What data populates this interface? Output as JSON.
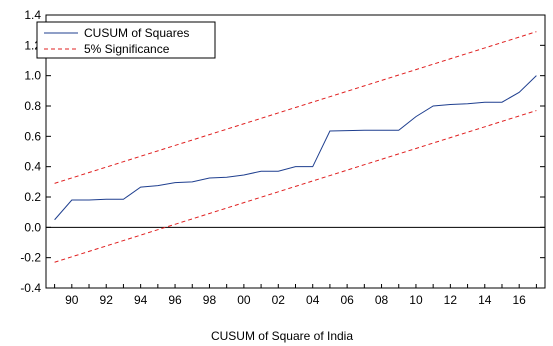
{
  "chart_data": {
    "type": "line",
    "title": "",
    "xlabel": "CUSUM of Square of India",
    "ylabel": "",
    "x": [
      1989,
      1990,
      1991,
      1992,
      1993,
      1994,
      1995,
      1996,
      1997,
      1998,
      1999,
      2000,
      2001,
      2002,
      2003,
      2004,
      2005,
      2006,
      2007,
      2008,
      2009,
      2010,
      2011,
      2012,
      2013,
      2014,
      2015,
      2016,
      2017
    ],
    "xticks": [
      "90",
      "92",
      "94",
      "96",
      "98",
      "00",
      "02",
      "04",
      "06",
      "08",
      "10",
      "12",
      "14",
      "16"
    ],
    "xtick_values": [
      1990,
      1992,
      1994,
      1996,
      1998,
      2000,
      2002,
      2004,
      2006,
      2008,
      2010,
      2012,
      2014,
      2016
    ],
    "xlim": [
      1988.5,
      2017.5
    ],
    "ylim": [
      -0.4,
      1.4
    ],
    "yticks": [
      "-0.4",
      "-0.2",
      "0.0",
      "0.2",
      "0.4",
      "0.6",
      "0.8",
      "1.0",
      "1.2",
      "1.4"
    ],
    "ytick_values": [
      -0.4,
      -0.2,
      0.0,
      0.2,
      0.4,
      0.6,
      0.8,
      1.0,
      1.2,
      1.4
    ],
    "zero_line": true,
    "grid": false,
    "legend_position": "top-left",
    "series": [
      {
        "name": "CUSUM of Squares",
        "color": "#1f3f8f",
        "style": "solid",
        "values": [
          0.05,
          0.18,
          0.18,
          0.185,
          0.185,
          0.265,
          0.275,
          0.295,
          0.3,
          0.325,
          0.33,
          0.345,
          0.37,
          0.37,
          0.4,
          0.4,
          0.635,
          0.638,
          0.64,
          0.64,
          0.64,
          0.73,
          0.8,
          0.81,
          0.815,
          0.825,
          0.825,
          0.89,
          1.0
        ]
      },
      {
        "name": "5% Significance",
        "color": "#e02020",
        "style": "dashed",
        "values": [
          0.29,
          0.3257,
          0.3614,
          0.3971,
          0.4329,
          0.4686,
          0.5043,
          0.54,
          0.5757,
          0.6114,
          0.6471,
          0.6829,
          0.7186,
          0.7543,
          0.79,
          0.8257,
          0.8614,
          0.8971,
          0.9329,
          0.9686,
          1.0043,
          1.04,
          1.0757,
          1.1114,
          1.1471,
          1.1829,
          1.2186,
          1.2543,
          1.29
        ]
      },
      {
        "name": "",
        "color": "#e02020",
        "style": "dashed",
        "values": [
          -0.23,
          -0.1943,
          -0.1586,
          -0.1229,
          -0.0871,
          -0.0514,
          -0.0157,
          0.02,
          0.0557,
          0.0914,
          0.1271,
          0.1629,
          0.1986,
          0.2343,
          0.27,
          0.3057,
          0.3414,
          0.3771,
          0.4129,
          0.4486,
          0.4843,
          0.52,
          0.5557,
          0.5914,
          0.6271,
          0.6629,
          0.6986,
          0.7343,
          0.77
        ]
      }
    ]
  }
}
